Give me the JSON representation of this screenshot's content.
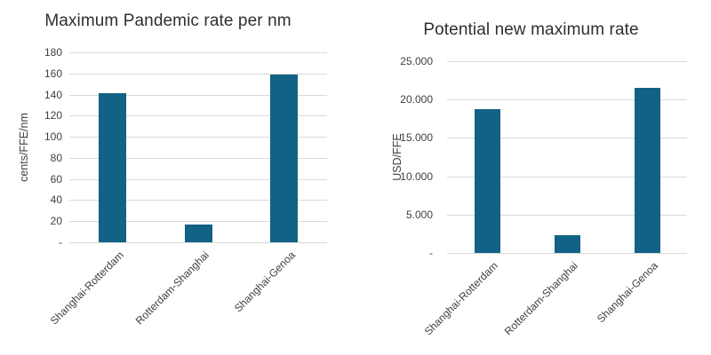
{
  "page": {
    "background": "#ffffff"
  },
  "colors": {
    "bar": "#116285",
    "gridline": "#d9d9d9",
    "title_text": "#2f2f2f",
    "axis_text": "#404040",
    "category_text": "#3f3f3f"
  },
  "chart_data": [
    {
      "type": "bar",
      "title": "Maximum Pandemic rate per nm",
      "ylabel": "cents/FFE/nm",
      "xlabel": "",
      "categories": [
        "Shanghai-Rotterdam",
        "Rotterdam-Shanghai",
        "Shanghai-Genoa"
      ],
      "values": [
        141,
        17,
        159
      ],
      "ylim": [
        0,
        180
      ],
      "ytick_step": 20,
      "ytick_labels": [
        "180",
        "160",
        "140",
        "120",
        "100",
        "80",
        "60",
        "40",
        "20",
        "-"
      ],
      "grid": "horizontal",
      "legend": "none",
      "bar_color": "#116285"
    },
    {
      "type": "bar",
      "title": "Potential new maximum rate",
      "ylabel": "USD/FFE",
      "xlabel": "",
      "categories": [
        "Shanghai-Rotterdam",
        "Rotterdam-Shanghai",
        "Shanghai-Genoa"
      ],
      "values": [
        18800,
        2300,
        21500
      ],
      "ylim": [
        0,
        25000
      ],
      "ytick_step": 5000,
      "ytick_labels": [
        "25.000",
        "20.000",
        "15.000",
        "10.000",
        "5.000",
        "-"
      ],
      "grid": "horizontal",
      "legend": "none",
      "bar_color": "#116285"
    }
  ]
}
